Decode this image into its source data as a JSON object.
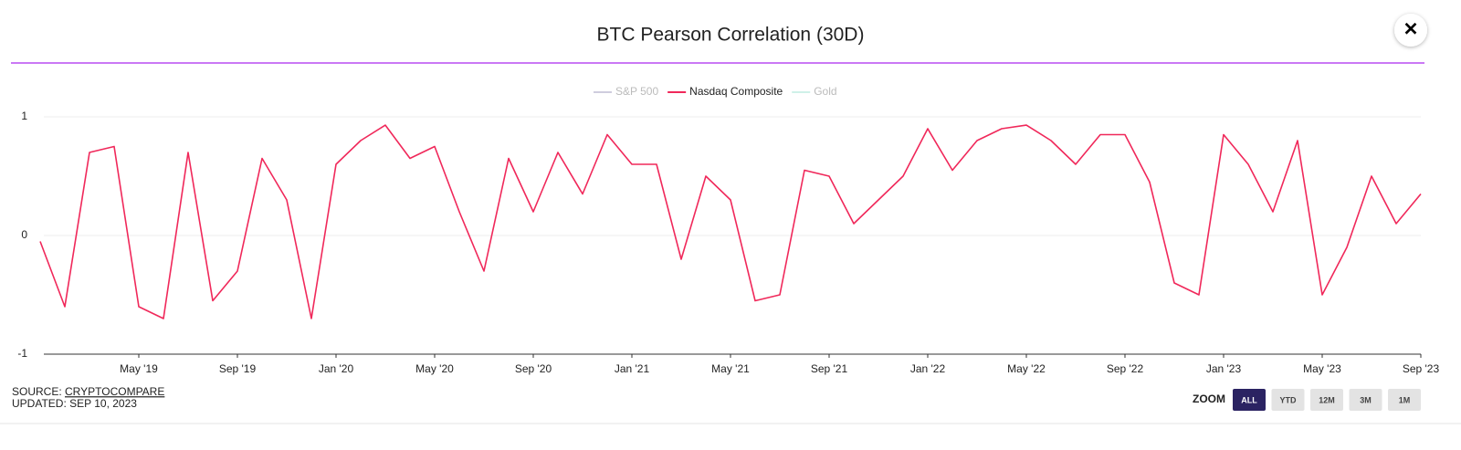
{
  "chart_data": {
    "type": "line",
    "title": "BTC Pearson Correlation (30D)",
    "x": [
      "2019-01",
      "2019-02",
      "2019-03",
      "2019-04",
      "2019-05",
      "2019-06",
      "2019-07",
      "2019-08",
      "2019-09",
      "2019-10",
      "2019-11",
      "2019-12",
      "2020-01",
      "2020-02",
      "2020-03",
      "2020-04",
      "2020-05",
      "2020-06",
      "2020-07",
      "2020-08",
      "2020-09",
      "2020-10",
      "2020-11",
      "2020-12",
      "2021-01",
      "2021-02",
      "2021-03",
      "2021-04",
      "2021-05",
      "2021-06",
      "2021-07",
      "2021-08",
      "2021-09",
      "2021-10",
      "2021-11",
      "2021-12",
      "2022-01",
      "2022-02",
      "2022-03",
      "2022-04",
      "2022-05",
      "2022-06",
      "2022-07",
      "2022-08",
      "2022-09",
      "2022-10",
      "2022-11",
      "2022-12",
      "2023-01",
      "2023-02",
      "2023-03",
      "2023-04",
      "2023-05",
      "2023-06",
      "2023-07",
      "2023-08",
      "2023-09"
    ],
    "series": [
      {
        "name": "S&P 500",
        "color": "#a9a6c4",
        "hidden": true
      },
      {
        "name": "Nasdaq Composite",
        "color": "#f0285a",
        "values": [
          -0.05,
          -0.6,
          0.7,
          0.75,
          -0.6,
          -0.7,
          0.7,
          -0.55,
          -0.3,
          0.65,
          0.3,
          -0.7,
          0.6,
          0.8,
          0.93,
          0.65,
          0.75,
          0.2,
          -0.3,
          0.65,
          0.2,
          0.7,
          0.35,
          0.85,
          0.6,
          0.6,
          -0.2,
          0.5,
          0.3,
          -0.55,
          -0.5,
          0.55,
          0.5,
          0.1,
          0.3,
          0.5,
          0.9,
          0.55,
          0.8,
          0.9,
          0.93,
          0.8,
          0.6,
          0.85,
          0.85,
          0.45,
          -0.4,
          -0.5,
          0.85,
          0.6,
          0.2,
          0.8,
          -0.5,
          -0.1,
          0.5,
          0.1,
          0.35
        ]
      },
      {
        "name": "Gold",
        "color": "#a8e6d6",
        "hidden": true
      }
    ],
    "xlim": [
      "2019-01",
      "2023-09"
    ],
    "xticks": [
      {
        "value": "2019-05",
        "label": "May '19"
      },
      {
        "value": "2019-09",
        "label": "Sep '19"
      },
      {
        "value": "2020-01",
        "label": "Jan '20"
      },
      {
        "value": "2020-05",
        "label": "May '20"
      },
      {
        "value": "2020-09",
        "label": "Sep '20"
      },
      {
        "value": "2021-01",
        "label": "Jan '21"
      },
      {
        "value": "2021-05",
        "label": "May '21"
      },
      {
        "value": "2021-09",
        "label": "Sep '21"
      },
      {
        "value": "2022-01",
        "label": "Jan '22"
      },
      {
        "value": "2022-05",
        "label": "May '22"
      },
      {
        "value": "2022-09",
        "label": "Sep '22"
      },
      {
        "value": "2023-01",
        "label": "Jan '23"
      },
      {
        "value": "2023-05",
        "label": "May '23"
      },
      {
        "value": "2023-09",
        "label": "Sep '23"
      }
    ],
    "ylim": [
      -1,
      1
    ],
    "yticks": [
      -1,
      0,
      1
    ],
    "grid": true,
    "legend": "top"
  },
  "ui": {
    "close": "✕",
    "source_label": "SOURCE:",
    "source": "CRYPTOCOMPARE",
    "updated": "UPDATED: SEP 10, 2023",
    "zoom_label": "ZOOM",
    "zoom_buttons": [
      "ALL",
      "YTD",
      "12M",
      "3M",
      "1M"
    ],
    "zoom_active": 0
  }
}
